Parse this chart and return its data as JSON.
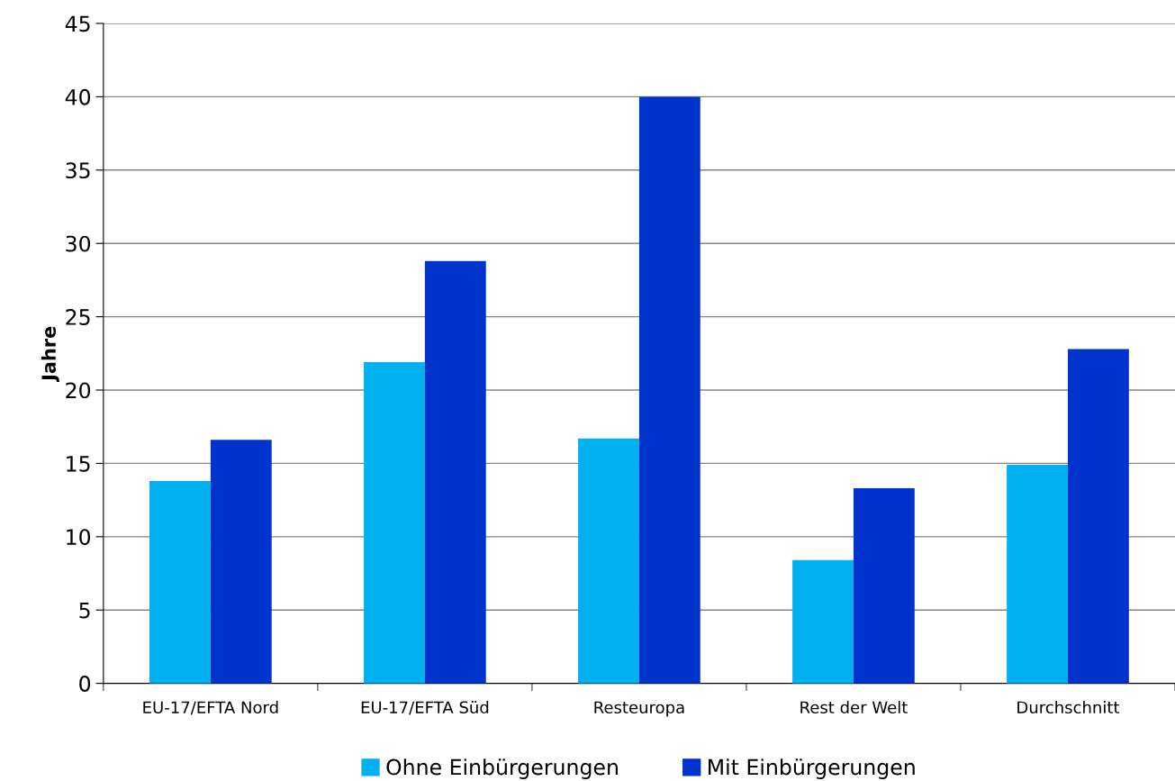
{
  "chart_data": {
    "type": "bar",
    "ylabel": "Jahre",
    "categories": [
      "EU-17/EFTA Nord",
      "EU-17/EFTA Süd",
      "Resteuropa",
      "Rest der Welt",
      "Durchschnitt"
    ],
    "series": [
      {
        "name": "Ohne Einbürgerungen",
        "color": "#00b0f0",
        "values": [
          13.8,
          21.9,
          16.7,
          8.4,
          14.9
        ]
      },
      {
        "name": "Mit Einbürgerungen",
        "color": "#0033cc",
        "values": [
          16.6,
          28.8,
          40.0,
          13.3,
          22.8
        ]
      }
    ],
    "ylim": [
      0,
      45
    ],
    "yticks": [
      0,
      5,
      10,
      15,
      20,
      25,
      30,
      35,
      40,
      45
    ],
    "grid": "y",
    "legend": "bottom"
  }
}
